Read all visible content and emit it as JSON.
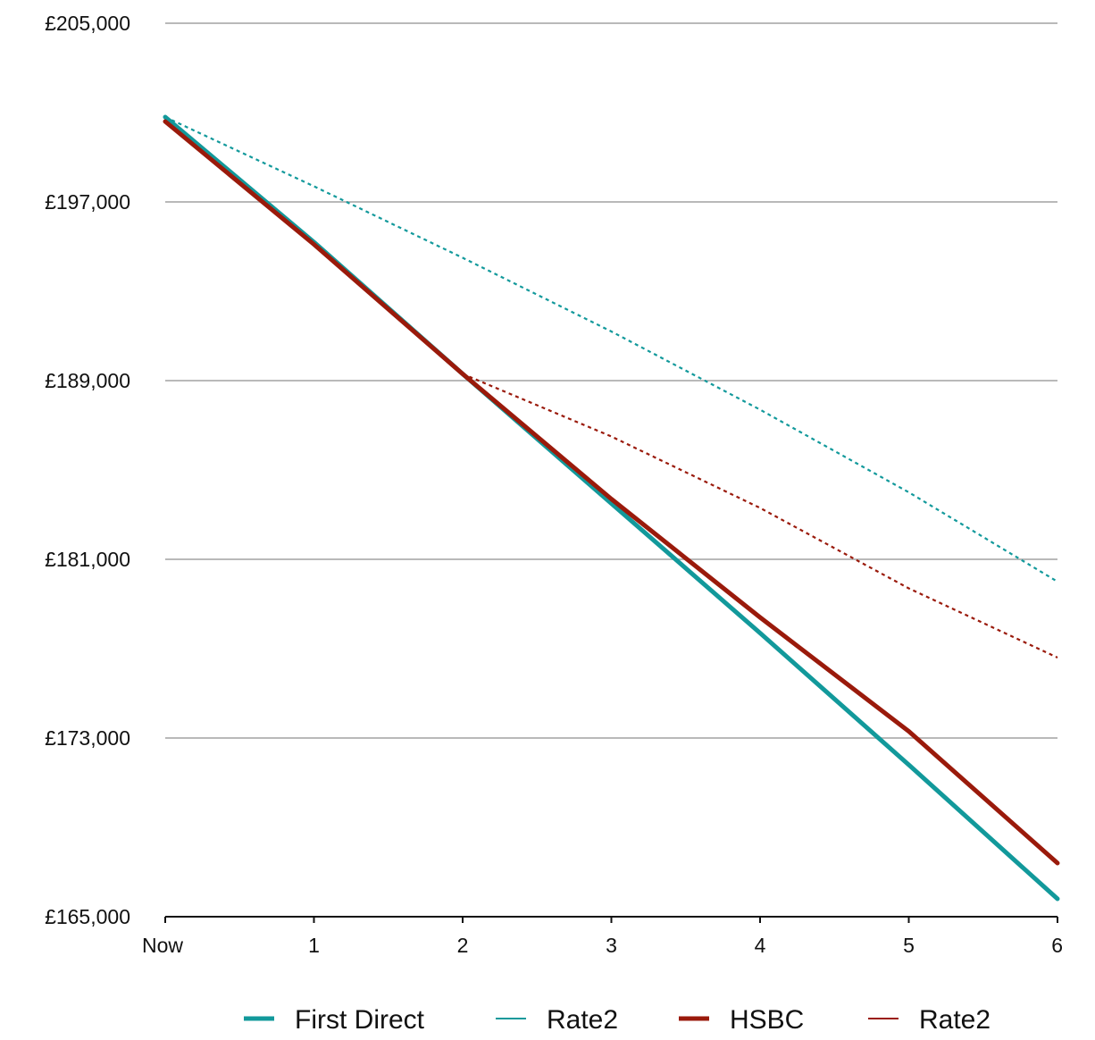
{
  "chart_data": {
    "type": "line",
    "x": [
      "Now",
      "1",
      "2",
      "3",
      "4",
      "5",
      "6"
    ],
    "ylim": [
      165000,
      205000
    ],
    "y_ticks": [
      {
        "value": 205000,
        "label": "£205,000"
      },
      {
        "value": 197000,
        "label": "£197,000"
      },
      {
        "value": 189000,
        "label": "£189,000"
      },
      {
        "value": 181000,
        "label": "£181,000"
      },
      {
        "value": 173000,
        "label": "£173,000"
      },
      {
        "value": 165000,
        "label": "£165,000"
      }
    ],
    "grid": true,
    "legend_position": "bottom",
    "series": [
      {
        "name": "First Direct",
        "color": "#12999b",
        "style": "solid-thick",
        "values": [
          200800,
          195200,
          189300,
          183500,
          177700,
          171800,
          165800
        ]
      },
      {
        "name": "Rate2",
        "color": "#12999b",
        "style": "dotted",
        "values": [
          200800,
          197700,
          194500,
          191200,
          187700,
          184000,
          180000
        ]
      },
      {
        "name": "HSBC",
        "color": "#9a1a0b",
        "style": "solid-thick",
        "values": [
          200600,
          195100,
          189300,
          183700,
          178400,
          173300,
          167400
        ]
      },
      {
        "name": "Rate2",
        "color": "#9a1a0b",
        "style": "dotted",
        "values": [
          null,
          null,
          189300,
          186500,
          183300,
          179700,
          176600
        ]
      }
    ]
  }
}
